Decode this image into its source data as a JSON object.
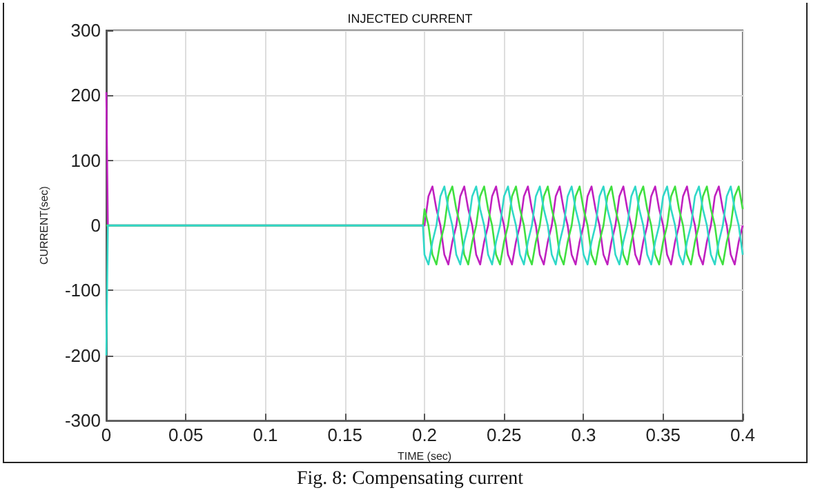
{
  "chart_data": {
    "type": "line",
    "title": "INJECTED CURRENT",
    "xlabel": "TIME (sec)",
    "ylabel": "CURRENT(sec)",
    "annotations": [
      "Fig. 8: Compensating current"
    ],
    "xlim": [
      0,
      0.4
    ],
    "xticks": [
      0,
      0.05,
      0.1,
      0.15,
      0.2,
      0.25,
      0.3,
      0.35,
      0.4
    ],
    "ylim": [
      -300,
      300
    ],
    "yticks": [
      -300,
      -200,
      -100,
      0,
      100,
      200,
      300
    ],
    "grid": true,
    "marker": "none",
    "line_style": "solid",
    "x": [
      0,
      0.001,
      0.199,
      0.2,
      0.2025,
      0.205,
      0.2075,
      0.21,
      0.2125,
      0.215,
      0.2175,
      0.22,
      0.2225,
      0.225,
      0.2275,
      0.23,
      0.2325,
      0.235,
      0.2375,
      0.24,
      0.2425,
      0.245,
      0.2475,
      0.25,
      0.2525,
      0.255,
      0.2575,
      0.26,
      0.2625,
      0.265,
      0.2675,
      0.27,
      0.2725,
      0.275,
      0.2775,
      0.28,
      0.2825,
      0.285,
      0.2875,
      0.29,
      0.2925,
      0.295,
      0.2975,
      0.3,
      0.3025,
      0.305,
      0.3075,
      0.31,
      0.3125,
      0.315,
      0.3175,
      0.32,
      0.3225,
      0.325,
      0.3275,
      0.33,
      0.3325,
      0.335,
      0.3375,
      0.34,
      0.3425,
      0.345,
      0.3475,
      0.35,
      0.3525,
      0.355,
      0.3575,
      0.36,
      0.3625,
      0.365,
      0.3675,
      0.37,
      0.3725,
      0.375,
      0.3775,
      0.38,
      0.3825,
      0.385,
      0.3875,
      0.39,
      0.3925,
      0.395,
      0.3975,
      0.4
    ],
    "series": [
      {
        "color": "#c020c0",
        "values": [
          205,
          0,
          0,
          0,
          45,
          60,
          25,
          0,
          -45,
          -60,
          -25,
          0,
          45,
          60,
          25,
          0,
          -45,
          -60,
          -25,
          0,
          45,
          60,
          25,
          0,
          -45,
          -60,
          -25,
          0,
          45,
          60,
          25,
          0,
          -45,
          -60,
          -25,
          0,
          45,
          60,
          25,
          0,
          -45,
          -60,
          -25,
          0,
          45,
          60,
          25,
          0,
          -45,
          -60,
          -25,
          0,
          45,
          60,
          25,
          0,
          -45,
          -60,
          -25,
          0,
          45,
          60,
          25,
          0,
          -45,
          -60,
          -25,
          0,
          45,
          60,
          25,
          0,
          -45,
          -60,
          -25,
          0,
          45,
          60,
          25,
          0,
          -45,
          -60,
          -25,
          0
        ]
      },
      {
        "color": "#40e040",
        "values": [
          0,
          0,
          0,
          25,
          0,
          -45,
          -60,
          -25,
          0,
          45,
          60,
          25,
          0,
          -45,
          -60,
          -25,
          0,
          45,
          60,
          25,
          0,
          -45,
          -60,
          -25,
          0,
          45,
          60,
          25,
          0,
          -45,
          -60,
          -25,
          0,
          45,
          60,
          25,
          0,
          -45,
          -60,
          -25,
          0,
          45,
          60,
          25,
          0,
          -45,
          -60,
          -25,
          0,
          45,
          60,
          25,
          0,
          -45,
          -60,
          -25,
          0,
          45,
          60,
          25,
          0,
          -45,
          -60,
          -25,
          0,
          45,
          60,
          25,
          0,
          -45,
          -60,
          -25,
          0,
          45,
          60,
          25,
          0,
          -45,
          -60,
          -25,
          0,
          45,
          60,
          25
        ]
      },
      {
        "color": "#30d8c8",
        "values": [
          -200,
          0,
          0,
          -45,
          -60,
          -25,
          0,
          45,
          60,
          25,
          0,
          -45,
          -60,
          -25,
          0,
          45,
          60,
          25,
          0,
          -45,
          -60,
          -25,
          0,
          45,
          60,
          25,
          0,
          -45,
          -60,
          -25,
          0,
          45,
          60,
          25,
          0,
          -45,
          -60,
          -25,
          0,
          45,
          60,
          25,
          0,
          -45,
          -60,
          -25,
          0,
          45,
          60,
          25,
          0,
          -45,
          -60,
          -25,
          0,
          45,
          60,
          25,
          0,
          -45,
          -60,
          -25,
          0,
          45,
          60,
          25,
          0,
          -45,
          -60,
          -25,
          0,
          45,
          60,
          25,
          0,
          -45,
          -60,
          -25,
          0,
          45,
          60,
          25,
          0,
          -45
        ]
      }
    ]
  }
}
